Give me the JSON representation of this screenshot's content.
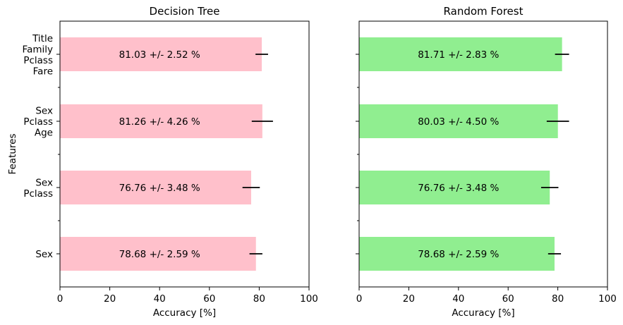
{
  "chart_data": [
    {
      "type": "bar",
      "orientation": "horizontal",
      "title": "Decision Tree",
      "xlabel": "Accuracy [%]",
      "ylabel": "Features",
      "xlim": [
        0,
        100
      ],
      "xticks": [
        "0",
        "20",
        "40",
        "60",
        "80",
        "100"
      ],
      "categories": [
        [
          "Sex"
        ],
        [
          "Sex",
          "Pclass"
        ],
        [
          "Sex",
          "Pclass",
          "Age"
        ],
        [
          "Title",
          "Family",
          "Pclass",
          "Fare"
        ]
      ],
      "values": [
        78.68,
        76.76,
        81.26,
        81.03
      ],
      "errors": [
        2.59,
        3.48,
        4.26,
        2.52
      ],
      "labels": [
        "78.68 +/- 2.59 %",
        "76.76 +/- 3.48 %",
        "81.26 +/- 4.26 %",
        "81.03 +/- 2.52 %"
      ],
      "color": "#ffc0cb"
    },
    {
      "type": "bar",
      "orientation": "horizontal",
      "title": "Random Forest",
      "xlabel": "Accuracy [%]",
      "ylabel": "",
      "xlim": [
        0,
        100
      ],
      "xticks": [
        "0",
        "20",
        "40",
        "60",
        "80",
        "100"
      ],
      "categories": [
        [
          "Sex"
        ],
        [
          "Sex",
          "Pclass"
        ],
        [
          "Sex",
          "Pclass",
          "Age"
        ],
        [
          "Title",
          "Family",
          "Pclass",
          "Fare"
        ]
      ],
      "values": [
        78.68,
        76.76,
        80.03,
        81.71
      ],
      "errors": [
        2.59,
        3.48,
        4.5,
        2.83
      ],
      "labels": [
        "78.68 +/- 2.59 %",
        "76.76 +/- 3.48 %",
        "80.03 +/- 4.50 %",
        "81.71 +/- 2.83 %"
      ],
      "color": "#90ee90"
    }
  ]
}
